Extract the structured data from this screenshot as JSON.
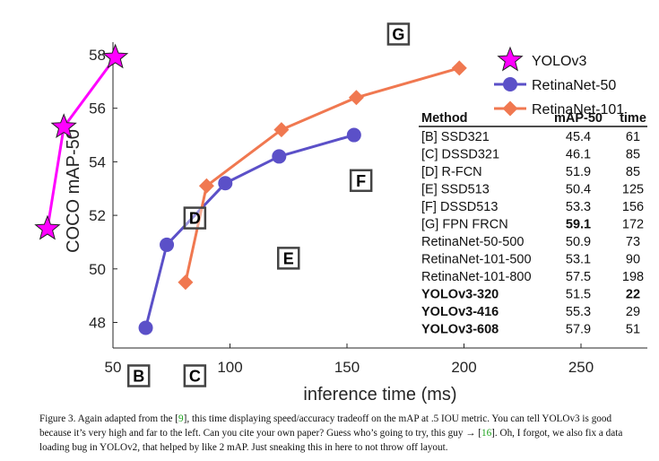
{
  "chart_data": {
    "type": "line",
    "xlabel": "inference time (ms)",
    "ylabel": "COCO mAP-50",
    "xlim": [
      50,
      280
    ],
    "ylim": [
      47,
      58.6
    ],
    "x_ticks": [
      50,
      100,
      150,
      200,
      250
    ],
    "y_ticks": [
      48,
      50,
      52,
      54,
      56,
      58
    ],
    "legend": {
      "placement": "top-right"
    },
    "series": [
      {
        "name": "YOLOv3",
        "color": "#ff00ff",
        "marker": "star",
        "points": [
          {
            "x": 22,
            "y": 51.5
          },
          {
            "x": 29,
            "y": 55.3
          },
          {
            "x": 51,
            "y": 57.9
          }
        ]
      },
      {
        "name": "RetinaNet-50",
        "color": "#5b50c8",
        "marker": "circle",
        "points": [
          {
            "x": 64,
            "y": 47.8
          },
          {
            "x": 73,
            "y": 50.9
          },
          {
            "x": 98,
            "y": 53.2
          },
          {
            "x": 121,
            "y": 54.2
          },
          {
            "x": 153,
            "y": 55.0
          }
        ]
      },
      {
        "name": "RetinaNet-101",
        "color": "#f07850",
        "marker": "diamond",
        "points": [
          {
            "x": 81,
            "y": 49.5
          },
          {
            "x": 90,
            "y": 53.1
          },
          {
            "x": 122,
            "y": 55.2
          },
          {
            "x": 154,
            "y": 56.4
          },
          {
            "x": 198,
            "y": 57.5
          }
        ]
      }
    ],
    "box_markers": [
      {
        "label": "B",
        "x": 61
      },
      {
        "label": "C",
        "x": 85
      },
      {
        "label": "D",
        "x": 85,
        "y": 51.9
      },
      {
        "label": "E",
        "x": 125,
        "y": 50.4
      },
      {
        "label": "F",
        "x": 156,
        "y": 53.3
      },
      {
        "label": "G",
        "x": 172
      }
    ],
    "table": {
      "headers": [
        "Method",
        "mAP-50",
        "time"
      ],
      "rows": [
        {
          "method": "[B] SSD321",
          "map": "45.4",
          "time": "61",
          "bold_method": false,
          "bold_map": false,
          "bold_time": false
        },
        {
          "method": "[C] DSSD321",
          "map": "46.1",
          "time": "85",
          "bold_method": false,
          "bold_map": false,
          "bold_time": false
        },
        {
          "method": "[D] R-FCN",
          "map": "51.9",
          "time": "85",
          "bold_method": false,
          "bold_map": false,
          "bold_time": false
        },
        {
          "method": "[E] SSD513",
          "map": "50.4",
          "time": "125",
          "bold_method": false,
          "bold_map": false,
          "bold_time": false
        },
        {
          "method": "[F] DSSD513",
          "map": "53.3",
          "time": "156",
          "bold_method": false,
          "bold_map": false,
          "bold_time": false
        },
        {
          "method": "[G] FPN FRCN",
          "map": "59.1",
          "time": "172",
          "bold_method": false,
          "bold_map": true,
          "bold_time": false
        },
        {
          "method": "RetinaNet-50-500",
          "map": "50.9",
          "time": "73",
          "bold_method": false,
          "bold_map": false,
          "bold_time": false
        },
        {
          "method": "RetinaNet-101-500",
          "map": "53.1",
          "time": "90",
          "bold_method": false,
          "bold_map": false,
          "bold_time": false
        },
        {
          "method": "RetinaNet-101-800",
          "map": "57.5",
          "time": "198",
          "bold_method": false,
          "bold_map": false,
          "bold_time": false
        },
        {
          "method": "YOLOv3-320",
          "map": "51.5",
          "time": "22",
          "bold_method": true,
          "bold_map": false,
          "bold_time": true
        },
        {
          "method": "YOLOv3-416",
          "map": "55.3",
          "time": "29",
          "bold_method": true,
          "bold_map": false,
          "bold_time": false
        },
        {
          "method": "YOLOv3-608",
          "map": "57.9",
          "time": "51",
          "bold_method": true,
          "bold_map": false,
          "bold_time": false
        }
      ]
    }
  },
  "caption": {
    "part1": "Figure 3. Again adapted from the [",
    "ref1": "9",
    "part2": "], this time displaying speed/accuracy tradeoff on the mAP at .5 IOU metric. You can tell YOLOv3 is good because it’s very high and far to the left. Can you cite your own paper? Guess who’s going to try, this guy → [",
    "ref2": "16",
    "part3": "]. Oh, I forgot, we also fix a data loading bug in YOLOv2, that helped by like 2 mAP. Just sneaking this in here to not throw off layout."
  }
}
